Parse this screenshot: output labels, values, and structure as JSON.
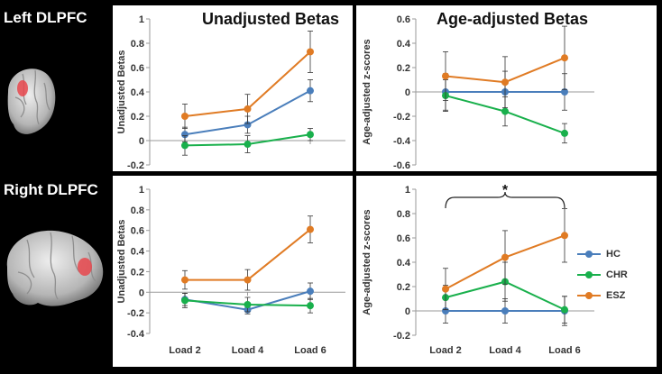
{
  "regions": {
    "left_label": "Left DLPFC",
    "right_label": "Right DLPFC"
  },
  "colors": {
    "HC": "#4A7EBB",
    "CHR": "#19B04C",
    "ESZ": "#E07B24",
    "brain_highlight": "#E8464C"
  },
  "legend": [
    {
      "name": "HC",
      "color": "#4A7EBB"
    },
    {
      "name": "CHR",
      "color": "#19B04C"
    },
    {
      "name": "ESZ",
      "color": "#E07B24"
    }
  ],
  "chart_data": [
    {
      "type": "line",
      "panel": "top-left",
      "title": "Unadjusted Betas",
      "ylabel": "Unadjusted Betas",
      "xlabel": "",
      "categories": [
        "",
        "",
        ""
      ],
      "ylim": [
        -0.2,
        1.0
      ],
      "yticks": [
        -0.2,
        0,
        0.2,
        0.4,
        0.6,
        0.8,
        1.0
      ],
      "ytick_labels": [
        "-0.2",
        "0",
        "0.2",
        "0.4",
        "0.6",
        "0.8",
        "1"
      ],
      "grid": false,
      "series": [
        {
          "name": "HC",
          "values": [
            0.05,
            0.13,
            0.41
          ],
          "errors": [
            0.06,
            0.07,
            0.09
          ]
        },
        {
          "name": "CHR",
          "values": [
            -0.04,
            -0.03,
            0.05
          ],
          "errors": [
            0.08,
            0.07,
            0.05
          ]
        },
        {
          "name": "ESZ",
          "values": [
            0.2,
            0.26,
            0.73
          ],
          "errors": [
            0.1,
            0.12,
            0.17
          ]
        }
      ]
    },
    {
      "type": "line",
      "panel": "top-right",
      "title": "Age-adjusted Betas",
      "ylabel": "Age-adjusted z-scores",
      "xlabel": "",
      "categories": [
        "",
        "",
        ""
      ],
      "ylim": [
        -0.6,
        0.6
      ],
      "yticks": [
        -0.6,
        -0.4,
        -0.2,
        0,
        0.2,
        0.4,
        0.6
      ],
      "ytick_labels": [
        "-0.6",
        "-0.4",
        "-0.2",
        "0",
        "0.2",
        "0.4",
        "0.6"
      ],
      "grid": false,
      "series": [
        {
          "name": "HC",
          "values": [
            0,
            0,
            0
          ],
          "errors": [
            0.15,
            0.17,
            0.15
          ]
        },
        {
          "name": "CHR",
          "values": [
            -0.03,
            -0.16,
            -0.34
          ],
          "errors": [
            0.13,
            0.12,
            0.08
          ]
        },
        {
          "name": "ESZ",
          "values": [
            0.13,
            0.08,
            0.28
          ],
          "errors": [
            0.2,
            0.21,
            0.26
          ]
        }
      ]
    },
    {
      "type": "line",
      "panel": "bottom-left",
      "title": "",
      "ylabel": "Unadjusted Betas",
      "xlabel": "",
      "categories": [
        "Load 2",
        "Load 4",
        "Load 6"
      ],
      "ylim": [
        -0.4,
        1.0
      ],
      "yticks": [
        -0.4,
        -0.2,
        0,
        0.2,
        0.4,
        0.6,
        0.8,
        1.0
      ],
      "ytick_labels": [
        "-0.4",
        "-0.2",
        "0",
        "0.2",
        "0.4",
        "0.6",
        "0.8",
        "1"
      ],
      "grid": false,
      "series": [
        {
          "name": "HC",
          "values": [
            -0.07,
            -0.17,
            0.01
          ],
          "errors": [
            0.06,
            0.04,
            0.08
          ]
        },
        {
          "name": "CHR",
          "values": [
            -0.08,
            -0.12,
            -0.13
          ],
          "errors": [
            0.07,
            0.07,
            0.07
          ]
        },
        {
          "name": "ESZ",
          "values": [
            0.12,
            0.12,
            0.61
          ],
          "errors": [
            0.09,
            0.1,
            0.13
          ]
        }
      ]
    },
    {
      "type": "line",
      "panel": "bottom-right",
      "title": "",
      "ylabel": "Age-adjusted z-scores",
      "xlabel": "",
      "categories": [
        "Load 2",
        "Load 4",
        "Load 6"
      ],
      "ylim": [
        -0.2,
        1.0
      ],
      "yticks": [
        -0.2,
        0,
        0.2,
        0.4,
        0.6,
        0.8,
        1.0
      ],
      "ytick_labels": [
        "-0.2",
        "0",
        "0.2",
        "0.4",
        "0.6",
        "0.8",
        "1"
      ],
      "grid": false,
      "annotation": {
        "text": "*",
        "between": [
          "Load 2",
          "Load 6"
        ]
      },
      "series": [
        {
          "name": "HC",
          "values": [
            0,
            0,
            0
          ],
          "errors": [
            0.1,
            0.1,
            0.12
          ]
        },
        {
          "name": "CHR",
          "values": [
            0.11,
            0.24,
            0.01
          ],
          "errors": [
            0.1,
            0.16,
            0.11
          ]
        },
        {
          "name": "ESZ",
          "values": [
            0.18,
            0.44,
            0.62
          ],
          "errors": [
            0.17,
            0.22,
            0.22
          ]
        }
      ]
    }
  ]
}
